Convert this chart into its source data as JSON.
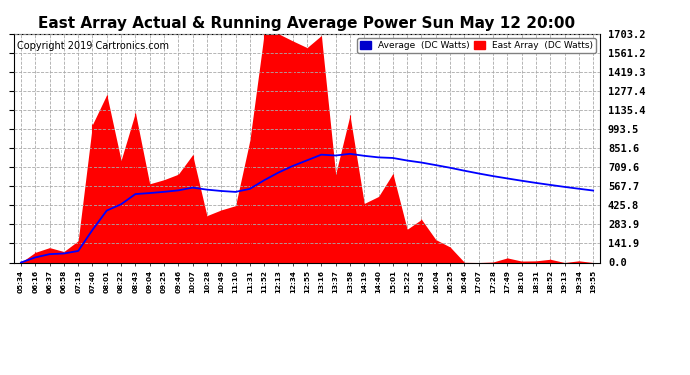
{
  "title": "East Array Actual & Running Average Power Sun May 12 20:00",
  "copyright": "Copyright 2019 Cartronics.com",
  "yticks": [
    0.0,
    141.9,
    283.9,
    425.8,
    567.7,
    709.6,
    851.6,
    993.5,
    1135.4,
    1277.4,
    1419.3,
    1561.2,
    1703.2
  ],
  "ymax": 1703.2,
  "legend_avg_label": "Average  (DC Watts)",
  "legend_east_label": "East Array  (DC Watts)",
  "bg_color": "#ffffff",
  "plot_bg_color": "#ffffff",
  "grid_color": "#aaaaaa",
  "bar_color": "#ff0000",
  "avg_line_color": "#0000ff",
  "title_fontsize": 11,
  "copyright_fontsize": 7
}
